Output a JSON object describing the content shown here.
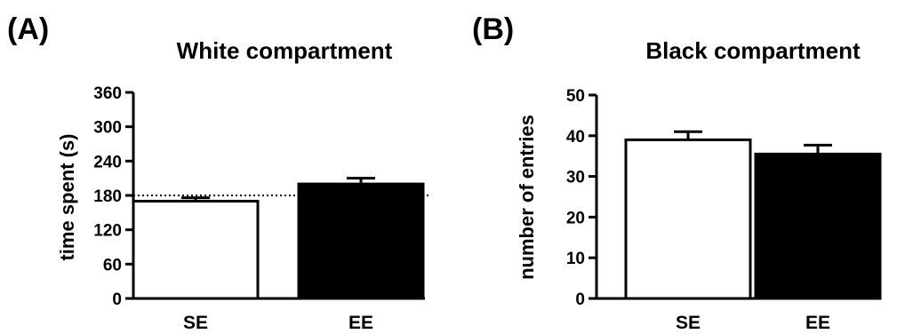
{
  "chart_data": [
    {
      "type": "bar",
      "panel_label": "(A)",
      "title": "White compartment",
      "ylabel": "time spent (s)",
      "xlabel": "",
      "categories": [
        "SE",
        "EE"
      ],
      "values": [
        170,
        200
      ],
      "errors": [
        6,
        10
      ],
      "bar_colors": [
        "#ffffff",
        "#000000"
      ],
      "ylim": [
        0,
        360
      ],
      "yticks": [
        0,
        60,
        120,
        180,
        240,
        300,
        360
      ],
      "reference_line": 180,
      "grid": false,
      "legend": "none"
    },
    {
      "type": "bar",
      "panel_label": "(B)",
      "title": "Black compartment",
      "ylabel": "number of entries",
      "xlabel": "",
      "categories": [
        "SE",
        "EE"
      ],
      "values": [
        39,
        35.5
      ],
      "errors": [
        2,
        2.2
      ],
      "bar_colors": [
        "#ffffff",
        "#000000"
      ],
      "ylim": [
        0,
        50
      ],
      "yticks": [
        0,
        10,
        20,
        30,
        40,
        50
      ],
      "grid": false,
      "legend": "none"
    }
  ]
}
